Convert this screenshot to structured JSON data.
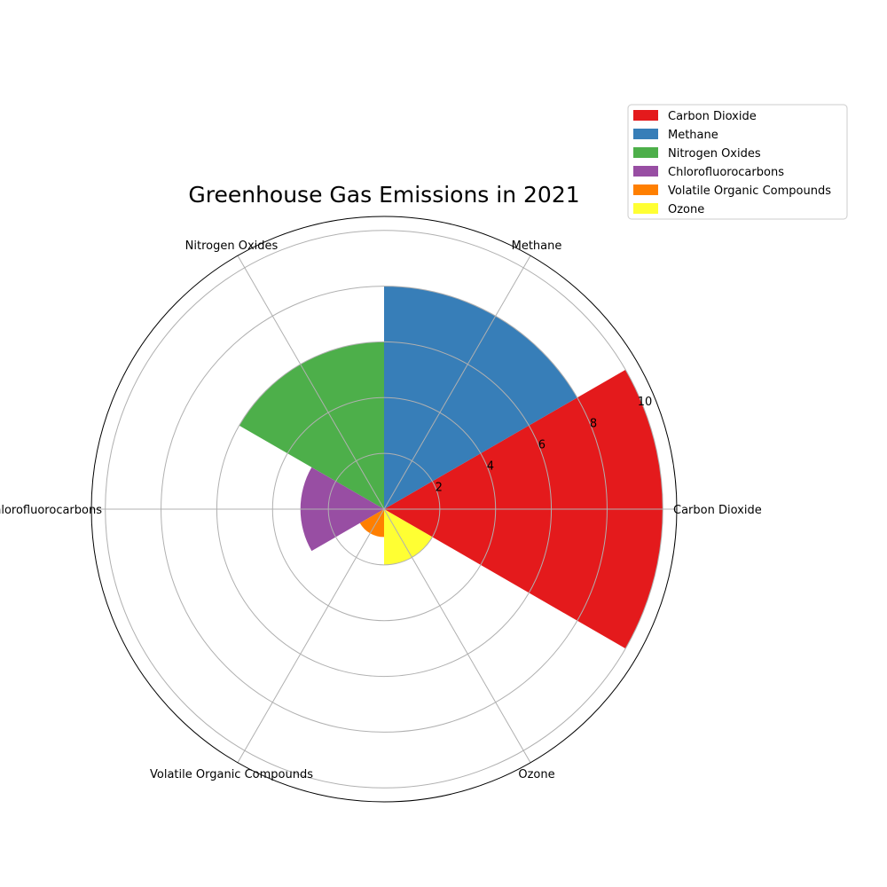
{
  "chart_data": {
    "type": "polar-bar",
    "title": "Greenhouse Gas Emissions in 2021",
    "categories": [
      "Carbon Dioxide",
      "Methane",
      "Nitrogen Oxides",
      "Chlorofluorocarbons",
      "Volatile Organic Compounds",
      "Ozone"
    ],
    "values": [
      10,
      8,
      6,
      3,
      1,
      2
    ],
    "colors": [
      "#e41a1c",
      "#377eb8",
      "#4daf4a",
      "#984ea3",
      "#ff7f00",
      "#ffff33"
    ],
    "radial_ticks": [
      "2",
      "4",
      "6",
      "8",
      "10"
    ],
    "rlim": [
      0,
      10.5
    ],
    "grid": true,
    "legend": {
      "position": "top-right",
      "entries": [
        "Carbon Dioxide",
        "Methane",
        "Nitrogen Oxides",
        "Chlorofluorocarbons",
        "Volatile Organic Compounds",
        "Ozone"
      ]
    }
  }
}
